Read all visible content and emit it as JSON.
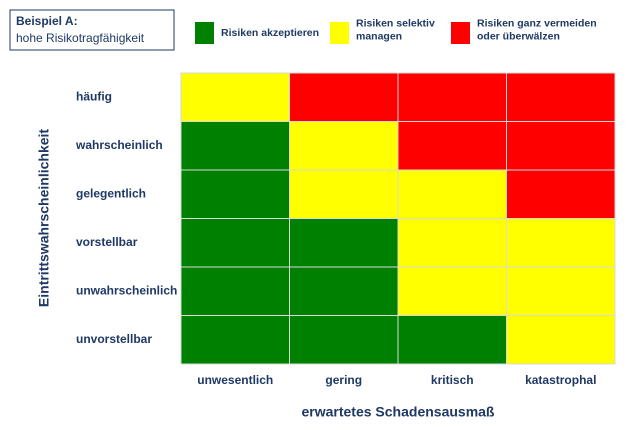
{
  "header": {
    "title": "Beispiel A:",
    "subtitle": "hohe Risikotragfähigkeit"
  },
  "legend": [
    {
      "color": "#008000",
      "lines": [
        "Risiken akzeptieren"
      ]
    },
    {
      "color": "#ffff00",
      "lines": [
        "Risiken selektiv",
        "managen"
      ]
    },
    {
      "color": "#ff0000",
      "lines": [
        "Risiken ganz vermeiden",
        "oder überwälzen"
      ]
    }
  ],
  "matrix": {
    "y_label": "Eintrittswahrscheinlichkeit",
    "x_label": "erwartetes Schadensausmaß",
    "rows": [
      "häufig",
      "wahrscheinlich",
      "gelegentlich",
      "vorstellbar",
      "unwahrscheinlich",
      "unvorstellbar"
    ],
    "columns": [
      "unwesentlich",
      "gering",
      "kritisch",
      "katastrophal"
    ],
    "cells": [
      [
        "#ffff00",
        "#ff0000",
        "#ff0000",
        "#ff0000"
      ],
      [
        "#008000",
        "#ffff00",
        "#ff0000",
        "#ff0000"
      ],
      [
        "#008000",
        "#ffff00",
        "#ffff00",
        "#ff0000"
      ],
      [
        "#008000",
        "#008000",
        "#ffff00",
        "#ffff00"
      ],
      [
        "#008000",
        "#008000",
        "#ffff00",
        "#ffff00"
      ],
      [
        "#008000",
        "#008000",
        "#008000",
        "#ffff00"
      ]
    ]
  }
}
